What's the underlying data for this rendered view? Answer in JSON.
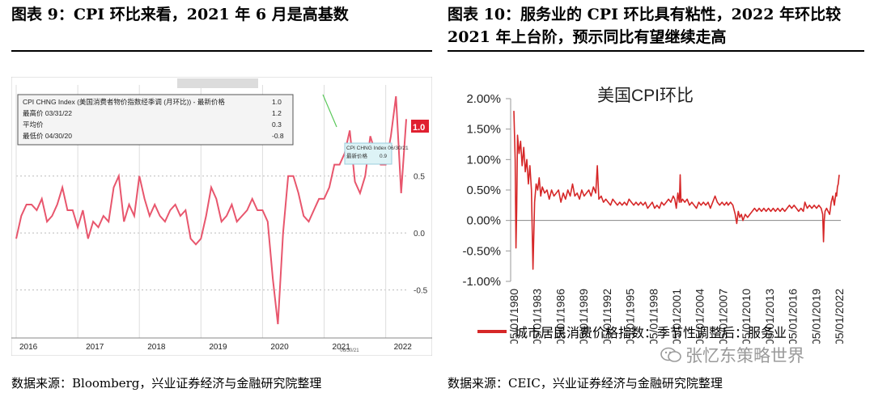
{
  "left_panel": {
    "figure_title": "图表 9：CPI 环比来看，2021 年 6 月是高基数",
    "source": "数据来源：Bloomberg，兴业证券经济与金融研究院整理"
  },
  "right_panel": {
    "figure_title": "图表 10：服务业的 CPI 环比具有粘性，2022 年环比较 2021 年上台阶，预示同比有望继续走高",
    "source": "数据来源：CEIC，兴业证券经济与金融研究院整理"
  },
  "watermark": "张忆东策略世界",
  "colors": {
    "line_red": "#d62728",
    "left_line": "#e8566d",
    "rule": "#000000"
  },
  "chart_data": [
    {
      "type": "line",
      "title": "",
      "legend_box": {
        "rows": [
          {
            "label": "CPI CHNG Index (美国消费者物价指数经季调 (月环比)) - 最新价格",
            "value": "1.0"
          },
          {
            "label": "最高价 03/31/22",
            "value": "1.2"
          },
          {
            "label": "平均价",
            "value": "0.3"
          },
          {
            "label": "最低价 04/30/20",
            "value": "-0.8"
          }
        ]
      },
      "annotation": {
        "label": "CPI CHNG Index 06/30/21",
        "sub_label": "最新价格",
        "value": "0.9"
      },
      "last_value_tag": "1.0",
      "x_ticks": [
        "2016",
        "2017",
        "2018",
        "2019",
        "2020",
        "2021",
        "2022"
      ],
      "x_ticks_sub": [
        "06/30/21"
      ],
      "y_ticks": [
        "0.5",
        "0.0",
        "-0.5"
      ],
      "ylim": [
        -0.9,
        1.3
      ],
      "x": [
        "2016-01",
        "2016-02",
        "2016-03",
        "2016-04",
        "2016-05",
        "2016-06",
        "2016-07",
        "2016-08",
        "2016-09",
        "2016-10",
        "2016-11",
        "2016-12",
        "2017-01",
        "2017-02",
        "2017-03",
        "2017-04",
        "2017-05",
        "2017-06",
        "2017-07",
        "2017-08",
        "2017-09",
        "2017-10",
        "2017-11",
        "2017-12",
        "2018-01",
        "2018-02",
        "2018-03",
        "2018-04",
        "2018-05",
        "2018-06",
        "2018-07",
        "2018-08",
        "2018-09",
        "2018-10",
        "2018-11",
        "2018-12",
        "2019-01",
        "2019-02",
        "2019-03",
        "2019-04",
        "2019-05",
        "2019-06",
        "2019-07",
        "2019-08",
        "2019-09",
        "2019-10",
        "2019-11",
        "2019-12",
        "2020-01",
        "2020-02",
        "2020-03",
        "2020-04",
        "2020-05",
        "2020-06",
        "2020-07",
        "2020-08",
        "2020-09",
        "2020-10",
        "2020-11",
        "2020-12",
        "2021-01",
        "2021-02",
        "2021-03",
        "2021-04",
        "2021-05",
        "2021-06",
        "2021-07",
        "2021-08",
        "2021-09",
        "2021-10",
        "2021-11",
        "2021-12",
        "2022-01",
        "2022-02",
        "2022-03",
        "2022-04",
        "2022-05"
      ],
      "values": [
        -0.05,
        0.15,
        0.25,
        0.25,
        0.2,
        0.3,
        0.1,
        0.15,
        0.25,
        0.4,
        0.2,
        0.2,
        0.05,
        0.2,
        -0.05,
        0.1,
        0.05,
        0.15,
        0.1,
        0.4,
        0.5,
        0.1,
        0.25,
        0.15,
        0.5,
        0.3,
        0.15,
        0.25,
        0.15,
        0.1,
        0.2,
        0.25,
        0.15,
        0.2,
        -0.05,
        -0.1,
        -0.05,
        0.15,
        0.4,
        0.3,
        0.1,
        0.15,
        0.25,
        0.1,
        0.15,
        0.2,
        0.3,
        0.2,
        0.2,
        0.1,
        -0.4,
        -0.8,
        0.0,
        0.5,
        0.5,
        0.35,
        0.15,
        0.1,
        0.2,
        0.3,
        0.3,
        0.4,
        0.6,
        0.6,
        0.7,
        0.9,
        0.45,
        0.35,
        0.5,
        0.85,
        0.7,
        0.6,
        0.6,
        0.85,
        1.2,
        0.35,
        1.0
      ]
    },
    {
      "type": "line",
      "title": "美国CPI环比",
      "series": [
        {
          "name": "城市居民消费价格指数：季节性调整后：服务业"
        }
      ],
      "y_ticks": [
        "2.00%",
        "1.50%",
        "1.00%",
        "0.50%",
        "0.00%",
        "-0.50%",
        "-1.00%"
      ],
      "ylim": [
        -1.0,
        2.0
      ],
      "x_ticks": [
        "05/01/1980",
        "05/01/1983",
        "05/01/1986",
        "05/01/1989",
        "05/01/1992",
        "05/01/1995",
        "05/01/1998",
        "05/01/2001",
        "05/01/2004",
        "05/01/2007",
        "05/01/2010",
        "05/01/2013",
        "05/01/2016",
        "05/01/2019",
        "05/01/2022"
      ],
      "x_range": [
        1980.33,
        2022.33
      ],
      "points": [
        [
          1980.33,
          1.8
        ],
        [
          1980.5,
          1.0
        ],
        [
          1980.6,
          -0.45
        ],
        [
          1980.7,
          0.2
        ],
        [
          1980.8,
          1.4
        ],
        [
          1981.0,
          1.1
        ],
        [
          1981.2,
          1.3
        ],
        [
          1981.4,
          0.9
        ],
        [
          1981.6,
          1.2
        ],
        [
          1981.8,
          0.8
        ],
        [
          1982.0,
          1.0
        ],
        [
          1982.2,
          0.6
        ],
        [
          1982.4,
          0.9
        ],
        [
          1982.6,
          0.5
        ],
        [
          1982.8,
          -0.8
        ],
        [
          1983.0,
          0.3
        ],
        [
          1983.2,
          0.6
        ],
        [
          1983.4,
          0.5
        ],
        [
          1983.6,
          0.7
        ],
        [
          1983.8,
          0.4
        ],
        [
          1984.0,
          0.55
        ],
        [
          1984.3,
          0.45
        ],
        [
          1984.6,
          0.5
        ],
        [
          1984.9,
          0.35
        ],
        [
          1985.2,
          0.5
        ],
        [
          1985.5,
          0.4
        ],
        [
          1985.8,
          0.45
        ],
        [
          1986.1,
          0.5
        ],
        [
          1986.4,
          0.3
        ],
        [
          1986.7,
          0.45
        ],
        [
          1987.0,
          0.35
        ],
        [
          1987.3,
          0.5
        ],
        [
          1987.6,
          0.4
        ],
        [
          1987.9,
          0.6
        ],
        [
          1988.2,
          0.4
        ],
        [
          1988.5,
          0.45
        ],
        [
          1988.8,
          0.35
        ],
        [
          1989.1,
          0.5
        ],
        [
          1989.4,
          0.4
        ],
        [
          1989.7,
          0.45
        ],
        [
          1990.0,
          0.5
        ],
        [
          1990.3,
          0.4
        ],
        [
          1990.6,
          0.55
        ],
        [
          1990.9,
          0.45
        ],
        [
          1991.1,
          0.9
        ],
        [
          1991.3,
          0.35
        ],
        [
          1991.6,
          0.4
        ],
        [
          1991.9,
          0.3
        ],
        [
          1992.2,
          0.35
        ],
        [
          1992.5,
          0.3
        ],
        [
          1992.8,
          0.25
        ],
        [
          1993.1,
          0.35
        ],
        [
          1993.4,
          0.3
        ],
        [
          1993.7,
          0.25
        ],
        [
          1994.0,
          0.3
        ],
        [
          1994.3,
          0.25
        ],
        [
          1994.6,
          0.3
        ],
        [
          1994.9,
          0.25
        ],
        [
          1995.2,
          0.35
        ],
        [
          1995.5,
          0.3
        ],
        [
          1995.8,
          0.25
        ],
        [
          1996.1,
          0.3
        ],
        [
          1996.4,
          0.25
        ],
        [
          1996.7,
          0.3
        ],
        [
          1997.0,
          0.25
        ],
        [
          1997.3,
          0.3
        ],
        [
          1997.6,
          0.2
        ],
        [
          1997.9,
          0.25
        ],
        [
          1998.2,
          0.3
        ],
        [
          1998.5,
          0.2
        ],
        [
          1998.8,
          0.25
        ],
        [
          1999.1,
          0.2
        ],
        [
          1999.4,
          0.3
        ],
        [
          1999.7,
          0.25
        ],
        [
          2000.0,
          0.3
        ],
        [
          2000.3,
          0.35
        ],
        [
          2000.6,
          0.3
        ],
        [
          2000.9,
          0.4
        ],
        [
          2001.1,
          0.35
        ],
        [
          2001.3,
          0.2
        ],
        [
          2001.5,
          0.45
        ],
        [
          2001.7,
          0.3
        ],
        [
          2001.8,
          0.75
        ],
        [
          2001.9,
          0.3
        ],
        [
          2002.1,
          0.35
        ],
        [
          2002.4,
          0.3
        ],
        [
          2002.7,
          0.35
        ],
        [
          2003.0,
          0.25
        ],
        [
          2003.3,
          0.3
        ],
        [
          2003.6,
          0.25
        ],
        [
          2003.9,
          0.2
        ],
        [
          2004.2,
          0.3
        ],
        [
          2004.5,
          0.25
        ],
        [
          2004.8,
          0.3
        ],
        [
          2005.1,
          0.25
        ],
        [
          2005.4,
          0.3
        ],
        [
          2005.7,
          0.2
        ],
        [
          2006.0,
          0.3
        ],
        [
          2006.3,
          0.4
        ],
        [
          2006.6,
          0.3
        ],
        [
          2006.9,
          0.25
        ],
        [
          2007.2,
          0.3
        ],
        [
          2007.5,
          0.25
        ],
        [
          2007.8,
          0.3
        ],
        [
          2008.0,
          0.25
        ],
        [
          2008.3,
          0.3
        ],
        [
          2008.6,
          0.25
        ],
        [
          2008.9,
          0.1
        ],
        [
          2009.1,
          -0.05
        ],
        [
          2009.3,
          0.15
        ],
        [
          2009.5,
          0.05
        ],
        [
          2009.7,
          0.1
        ],
        [
          2009.9,
          0.0
        ],
        [
          2010.2,
          0.1
        ],
        [
          2010.5,
          0.05
        ],
        [
          2010.8,
          0.1
        ],
        [
          2011.1,
          0.15
        ],
        [
          2011.4,
          0.2
        ],
        [
          2011.7,
          0.15
        ],
        [
          2012.0,
          0.2
        ],
        [
          2012.3,
          0.15
        ],
        [
          2012.6,
          0.2
        ],
        [
          2012.9,
          0.15
        ],
        [
          2013.2,
          0.2
        ],
        [
          2013.5,
          0.15
        ],
        [
          2013.8,
          0.2
        ],
        [
          2014.1,
          0.15
        ],
        [
          2014.4,
          0.2
        ],
        [
          2014.7,
          0.15
        ],
        [
          2015.0,
          0.2
        ],
        [
          2015.3,
          0.15
        ],
        [
          2015.6,
          0.2
        ],
        [
          2015.9,
          0.25
        ],
        [
          2016.2,
          0.2
        ],
        [
          2016.5,
          0.25
        ],
        [
          2016.8,
          0.2
        ],
        [
          2017.1,
          0.15
        ],
        [
          2017.4,
          0.2
        ],
        [
          2017.7,
          0.15
        ],
        [
          2017.9,
          0.3
        ],
        [
          2018.2,
          0.2
        ],
        [
          2018.5,
          0.25
        ],
        [
          2018.8,
          0.2
        ],
        [
          2019.1,
          0.25
        ],
        [
          2019.4,
          0.2
        ],
        [
          2019.7,
          0.25
        ],
        [
          2020.0,
          0.2
        ],
        [
          2020.2,
          0.1
        ],
        [
          2020.3,
          -0.35
        ],
        [
          2020.4,
          0.0
        ],
        [
          2020.5,
          0.15
        ],
        [
          2020.7,
          0.2
        ],
        [
          2020.9,
          0.15
        ],
        [
          2021.1,
          0.1
        ],
        [
          2021.3,
          0.3
        ],
        [
          2021.5,
          0.4
        ],
        [
          2021.7,
          0.25
        ],
        [
          2021.9,
          0.45
        ],
        [
          2022.0,
          0.4
        ],
        [
          2022.1,
          0.55
        ],
        [
          2022.2,
          0.6
        ],
        [
          2022.33,
          0.75
        ]
      ]
    }
  ]
}
